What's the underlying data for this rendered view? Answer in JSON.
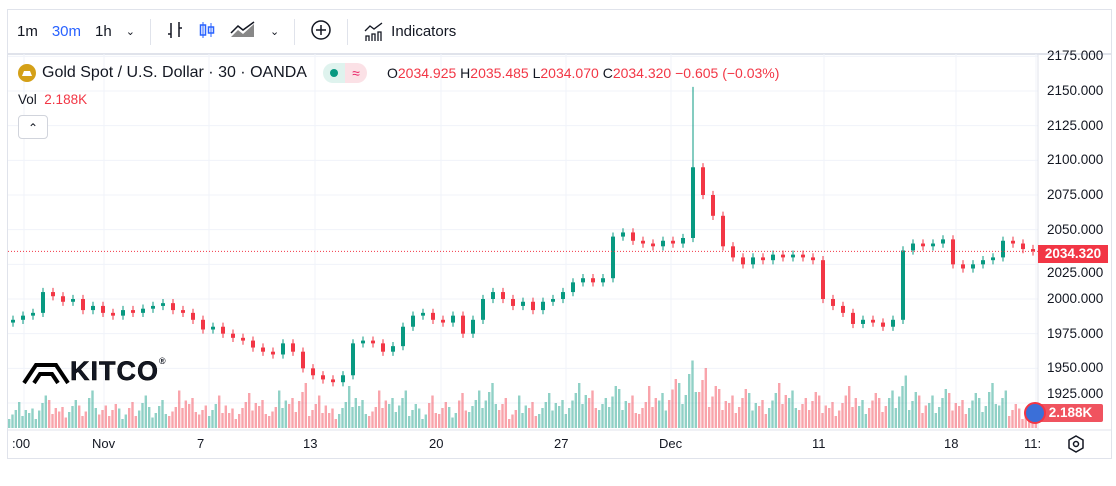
{
  "toolbar": {
    "intervals": [
      "1m",
      "30m",
      "1h"
    ],
    "active_interval": "30m",
    "indicators_label": "Indicators"
  },
  "legend": {
    "symbol": "Gold Spot / U.S. Dollar · 30 · OANDA",
    "o_label": "O",
    "o": "2034.925",
    "h_label": "H",
    "h": "2035.485",
    "l_label": "L",
    "l": "2034.070",
    "c_label": "C",
    "c": "2034.320",
    "change": "−0.605 (−0.03%)",
    "vol_label": "Vol",
    "vol": "2.188K"
  },
  "logo": "KITCO",
  "colors": {
    "up": "#089981",
    "down": "#f23645",
    "gold": "#d4a017"
  },
  "chart_data": {
    "type": "candlestick",
    "y_ticks": [
      "2175.000",
      "2150.000",
      "2125.000",
      "2100.000",
      "2075.000",
      "2050.000",
      "2025.000",
      "2000.000",
      "1975.000",
      "1950.000",
      "1925.000"
    ],
    "ylim": [
      1925,
      2175
    ],
    "x_ticks": [
      ":00",
      "Nov",
      "7",
      "13",
      "20",
      "27",
      "Dec",
      "11",
      "18",
      "11:"
    ],
    "last_price": "2034.320",
    "last_volume": "2.188K",
    "close": [
      1985,
      1988,
      1990,
      2005,
      2002,
      1998,
      2000,
      1992,
      1995,
      1990,
      1988,
      1992,
      1990,
      1993,
      1995,
      1997,
      1992,
      1990,
      1985,
      1978,
      1980,
      1975,
      1972,
      1970,
      1965,
      1962,
      1960,
      1968,
      1962,
      1950,
      1945,
      1942,
      1940,
      1945,
      1968,
      1970,
      1968,
      1962,
      1966,
      1980,
      1988,
      1990,
      1985,
      1983,
      1988,
      1975,
      1985,
      2000,
      2005,
      2000,
      1995,
      1998,
      1992,
      1998,
      2000,
      2005,
      2012,
      2015,
      2012,
      2015,
      2045,
      2048,
      2042,
      2040,
      2038,
      2042,
      2040,
      2044,
      2095,
      2075,
      2060,
      2038,
      2030,
      2025,
      2030,
      2028,
      2032,
      2030,
      2032,
      2030,
      2028,
      2000,
      1995,
      1990,
      1982,
      1985,
      1983,
      1980,
      1985,
      2035,
      2040,
      2038,
      2040,
      2043,
      2025,
      2022,
      2025,
      2028,
      2030,
      2042,
      2040,
      2036,
      2034.32
    ],
    "volume": [
      3,
      4,
      3,
      5,
      4,
      3,
      4,
      3,
      5,
      3,
      4,
      3,
      4,
      5,
      3,
      4,
      3,
      5,
      4,
      3,
      4,
      5,
      3,
      4,
      5,
      4,
      3,
      5,
      4,
      6,
      4,
      5,
      3,
      4,
      6,
      4,
      3,
      5,
      4,
      5,
      4,
      3,
      5,
      4,
      3,
      5,
      4,
      5,
      6,
      4,
      3,
      5,
      4,
      4,
      5,
      4,
      5,
      6,
      5,
      4,
      7,
      6,
      5,
      4,
      6,
      5,
      7,
      6,
      9,
      8,
      7,
      6,
      5,
      6,
      5,
      4,
      5,
      6,
      5,
      4,
      6,
      5,
      4,
      5,
      6,
      4,
      5,
      4,
      5,
      7,
      6,
      5,
      5,
      6,
      5,
      4,
      5,
      4,
      6,
      5,
      4,
      3,
      3
    ]
  }
}
